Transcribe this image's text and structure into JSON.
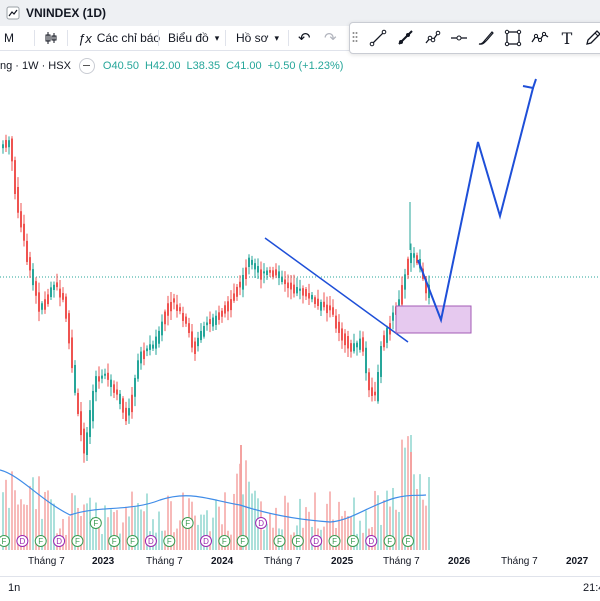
{
  "tab": {
    "title": "VNINDEX (1D)"
  },
  "toolbar": {
    "interval": "M",
    "indicators_label": "Các chỉ báo",
    "chart_type_label": "Biểu đồ",
    "profile_label": "Hồ sơ"
  },
  "legend": {
    "symbol": "ng · 1W · HSX",
    "open": "O40.50",
    "high": "H42.00",
    "low": "L38.35",
    "close": "C41.00",
    "change": "+0.50 (+1.23%)"
  },
  "xaxis": {
    "labels": [
      "Tháng 7",
      "2023",
      "Tháng 7",
      "2024",
      "Tháng 7",
      "2025",
      "Tháng 7",
      "2026",
      "Tháng 7",
      "2027"
    ]
  },
  "bottom": {
    "range_label": "1n",
    "time": "21:4"
  },
  "events": [
    "F",
    "D",
    "F",
    "D",
    "F",
    "F",
    "F",
    "F",
    "D",
    "F",
    "F",
    "D",
    "F",
    "F",
    "D",
    "F",
    "F",
    "D",
    "F",
    "F",
    "D",
    "F",
    "F"
  ],
  "colors": {
    "up": "#26a69a",
    "down": "#ef5350",
    "drawing": "#1e4fd8",
    "box": "#e6c9ef",
    "ma": "#3f8ce8",
    "price_line": "#26a69a"
  },
  "icons": [
    "tab-icon",
    "indicators-icon",
    "chevron-down-icon",
    "undo-icon",
    "redo-icon",
    "drag-handle-icon",
    "trend-line-icon",
    "ray-icon",
    "pattern-icon",
    "horizontal-line-icon",
    "brush-icon",
    "rectangle-icon",
    "path-icon",
    "text-icon",
    "pen-icon"
  ]
}
